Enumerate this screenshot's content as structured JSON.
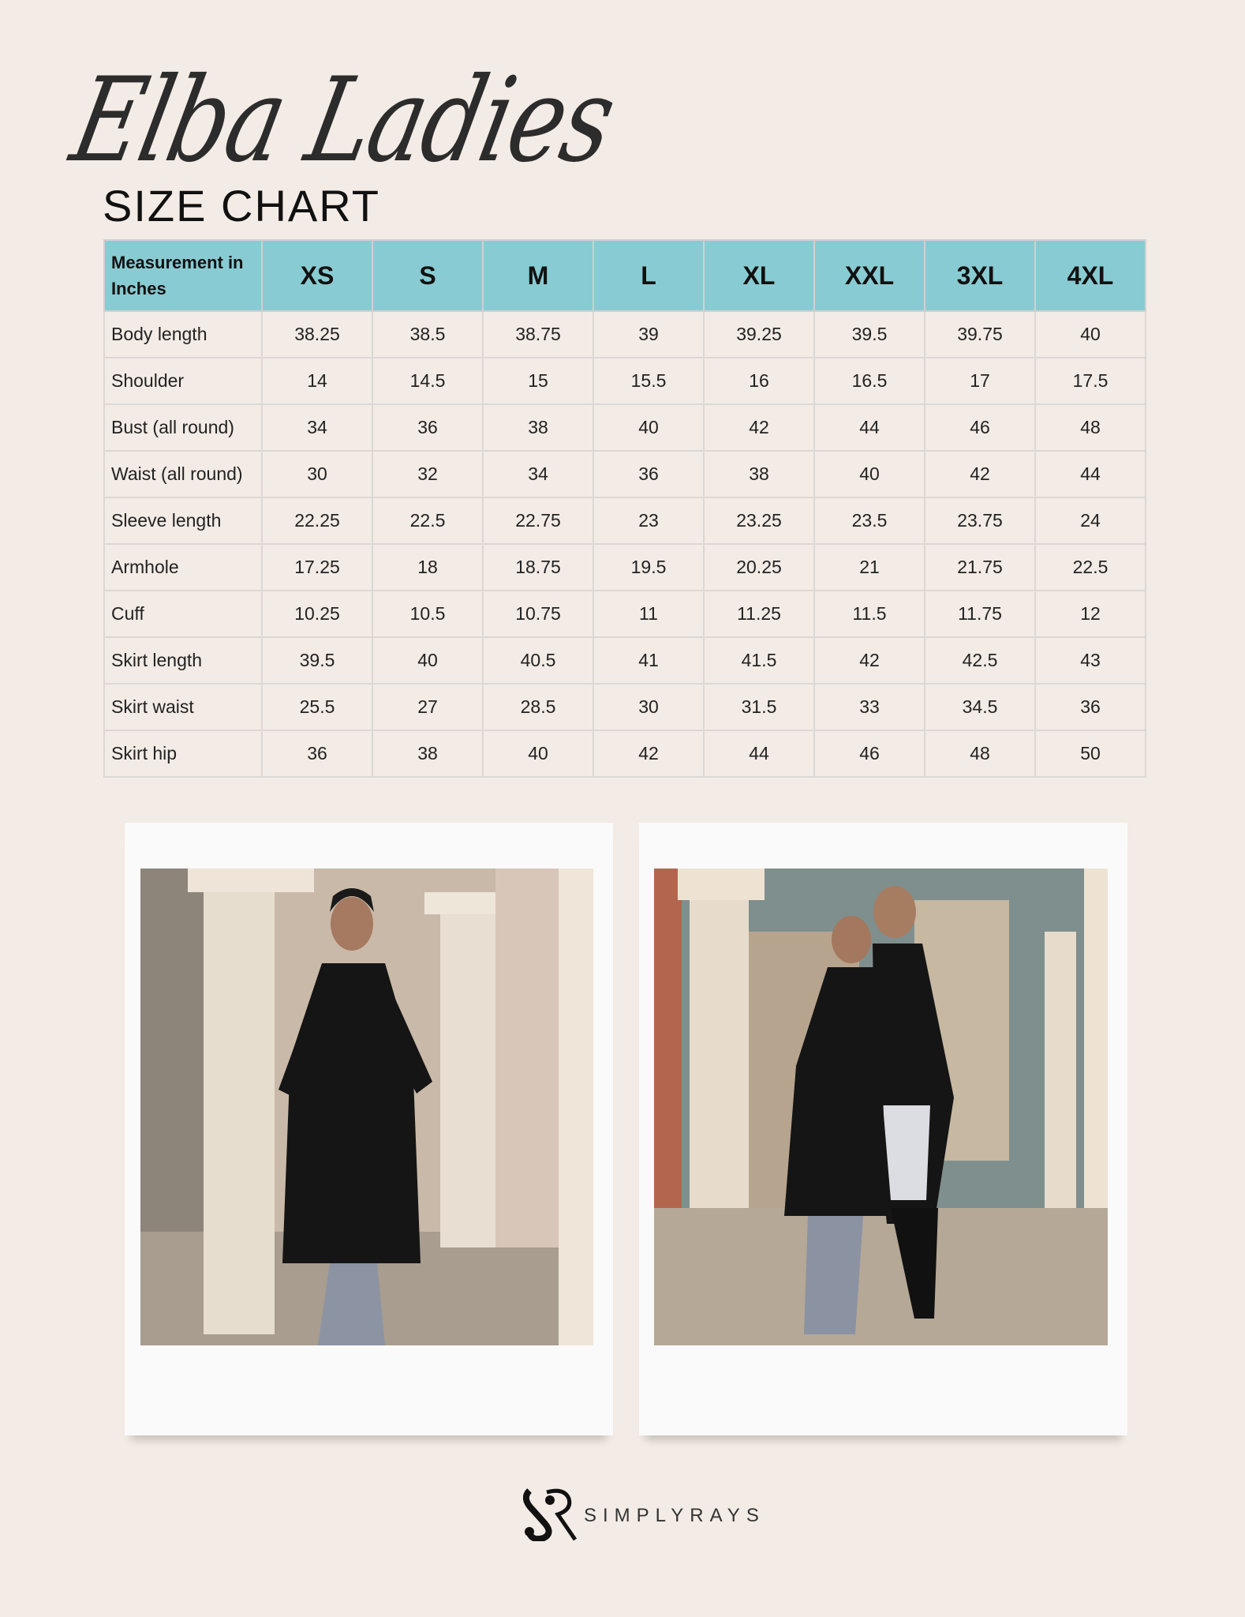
{
  "title": {
    "script": "Elba Ladies",
    "subtitle": "SIZE CHART"
  },
  "table": {
    "header_label": "Measurement in Inches",
    "sizes": [
      "XS",
      "S",
      "M",
      "L",
      "XL",
      "XXL",
      "3XL",
      "4XL"
    ],
    "rows": [
      {
        "label": "Body length",
        "values": [
          "38.25",
          "38.5",
          "38.75",
          "39",
          "39.25",
          "39.5",
          "39.75",
          "40"
        ]
      },
      {
        "label": "Shoulder",
        "values": [
          "14",
          "14.5",
          "15",
          "15.5",
          "16",
          "16.5",
          "17",
          "17.5"
        ]
      },
      {
        "label": "Bust (all round)",
        "values": [
          "34",
          "36",
          "38",
          "40",
          "42",
          "44",
          "46",
          "48"
        ]
      },
      {
        "label": "Waist (all round)",
        "values": [
          "30",
          "32",
          "34",
          "36",
          "38",
          "40",
          "42",
          "44"
        ]
      },
      {
        "label": "Sleeve length",
        "values": [
          "22.25",
          "22.5",
          "22.75",
          "23",
          "23.25",
          "23.5",
          "23.75",
          "24"
        ]
      },
      {
        "label": "Armhole",
        "values": [
          "17.25",
          "18",
          "18.75",
          "19.5",
          "20.25",
          "21",
          "21.75",
          "22.5"
        ]
      },
      {
        "label": "Cuff",
        "values": [
          "10.25",
          "10.5",
          "10.75",
          "11",
          "11.25",
          "11.5",
          "11.75",
          "12"
        ]
      },
      {
        "label": "Skirt length",
        "values": [
          "39.5",
          "40",
          "40.5",
          "41",
          "41.5",
          "42",
          "42.5",
          "43"
        ]
      },
      {
        "label": "Skirt waist",
        "values": [
          "25.5",
          "27",
          "28.5",
          "30",
          "31.5",
          "33",
          "34.5",
          "36"
        ]
      },
      {
        "label": "Skirt hip",
        "values": [
          "36",
          "38",
          "40",
          "42",
          "44",
          "46",
          "48",
          "50"
        ]
      }
    ]
  },
  "colors": {
    "background": "#f3ebe5",
    "header": "#89cbd2",
    "border": "#dcd8d5"
  },
  "brand": {
    "logo_mark": "SR",
    "name": "SIMPLYRAYS"
  }
}
